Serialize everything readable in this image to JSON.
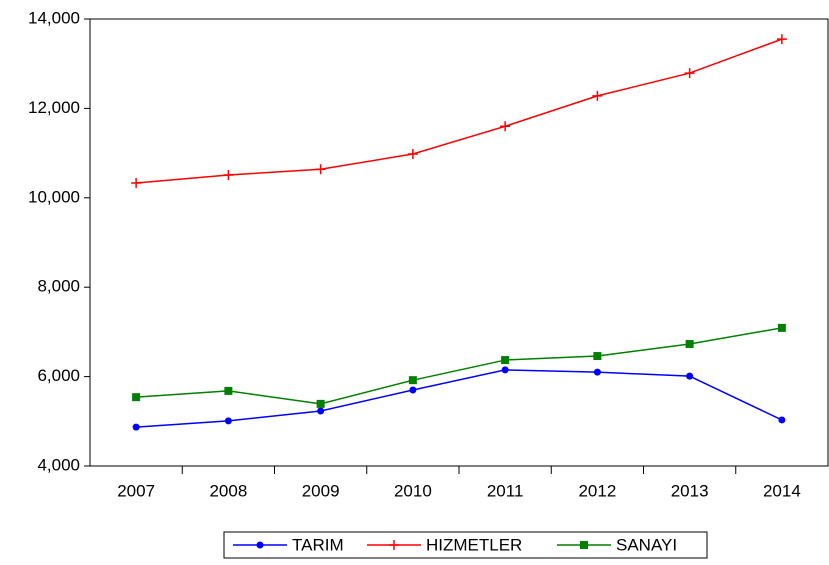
{
  "chart_data": {
    "type": "line",
    "categories": [
      "2007",
      "2008",
      "2009",
      "2010",
      "2011",
      "2012",
      "2013",
      "2014"
    ],
    "series": [
      {
        "name": "TARIM",
        "color": "#0000ff",
        "marker": "circle",
        "values": [
          4870,
          5010,
          5230,
          5700,
          6150,
          6100,
          6010,
          5030
        ]
      },
      {
        "name": "HIZMETLER",
        "color": "#ff0000",
        "marker": "plus",
        "values": [
          10330,
          10510,
          10640,
          10980,
          11600,
          12280,
          12790,
          13550
        ]
      },
      {
        "name": "SANAYI",
        "color": "#008000",
        "marker": "square",
        "values": [
          5540,
          5680,
          5390,
          5920,
          6370,
          6460,
          6730,
          7090
        ]
      }
    ],
    "ylim": [
      4000,
      14000
    ],
    "yticks": [
      {
        "value": 4000,
        "label": "4,000"
      },
      {
        "value": 6000,
        "label": "6,000"
      },
      {
        "value": 8000,
        "label": "8,000"
      },
      {
        "value": 10000,
        "label": "10,000"
      },
      {
        "value": 12000,
        "label": "12,000"
      },
      {
        "value": 14000,
        "label": "14,000"
      }
    ],
    "grid": false,
    "legend": "bottom"
  }
}
